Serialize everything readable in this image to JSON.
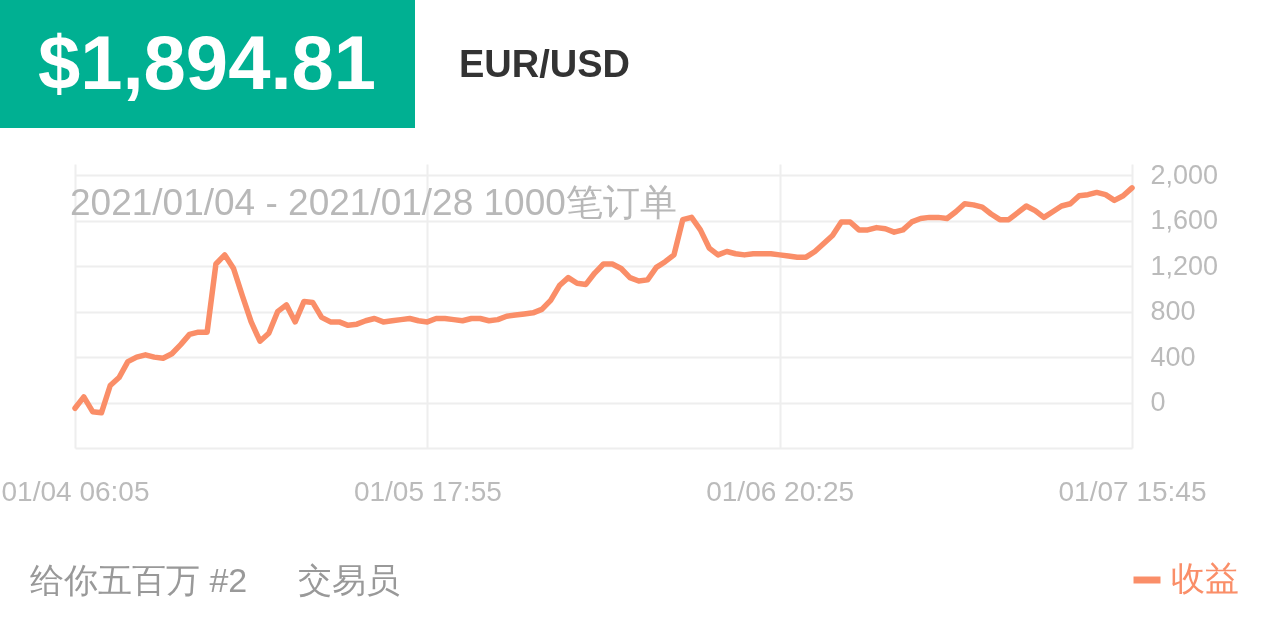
{
  "chart_data": {
    "type": "line",
    "title": "$1,894.81",
    "subtitle": "EUR/USD",
    "annotations": [
      "2021/01/04 - 2021/01/28 1000笔订单",
      "给你五百万 #2",
      "交易员"
    ],
    "categories": [
      "01/04 06:05",
      null,
      null,
      null,
      null,
      null,
      null,
      null,
      null,
      null,
      null,
      null,
      null,
      null,
      null,
      null,
      null,
      null,
      null,
      null,
      null,
      null,
      null,
      null,
      null,
      null,
      null,
      null,
      null,
      null,
      null,
      null,
      null,
      null,
      null,
      null,
      null,
      null,
      null,
      null,
      "01/05 17:55",
      null,
      null,
      null,
      null,
      null,
      null,
      null,
      null,
      null,
      null,
      null,
      null,
      null,
      null,
      null,
      null,
      null,
      null,
      null,
      null,
      null,
      null,
      null,
      null,
      null,
      null,
      null,
      null,
      null,
      null,
      null,
      null,
      null,
      null,
      null,
      null,
      null,
      null,
      null,
      "01/06 20:25",
      null,
      null,
      null,
      null,
      null,
      null,
      null,
      null,
      null,
      null,
      null,
      null,
      null,
      null,
      null,
      null,
      null,
      null,
      null,
      null,
      null,
      null,
      null,
      null,
      null,
      null,
      null,
      null,
      null,
      null,
      null,
      null,
      null,
      null,
      null,
      null,
      null,
      null,
      null,
      "01/07 15:45"
    ],
    "series": [
      {
        "name": "收益",
        "color": "#fa8e68",
        "values": [
          -50,
          50,
          -80,
          -90,
          150,
          220,
          360,
          400,
          420,
          400,
          390,
          430,
          510,
          600,
          620,
          620,
          1220,
          1300,
          1180,
          940,
          710,
          540,
          610,
          800,
          860,
          710,
          890,
          880,
          750,
          710,
          710,
          680,
          690,
          720,
          740,
          710,
          720,
          730,
          740,
          720,
          710,
          740,
          740,
          730,
          720,
          740,
          740,
          720,
          730,
          760,
          770,
          780,
          790,
          820,
          900,
          1030,
          1100,
          1050,
          1040,
          1140,
          1220,
          1220,
          1180,
          1100,
          1070,
          1080,
          1190,
          1240,
          1300,
          1610,
          1630,
          1520,
          1360,
          1300,
          1330,
          1310,
          1300,
          1310,
          1310,
          1310,
          1300,
          1290,
          1280,
          1280,
          1330,
          1400,
          1470,
          1590,
          1590,
          1520,
          1520,
          1540,
          1530,
          1500,
          1520,
          1590,
          1620,
          1630,
          1630,
          1620,
          1680,
          1750,
          1740,
          1720,
          1660,
          1610,
          1610,
          1670,
          1730,
          1690,
          1630,
          1680,
          1730,
          1750,
          1820,
          1830,
          1850,
          1830,
          1780,
          1820,
          1890
        ]
      }
    ],
    "ylim": [
      -400,
      2100
    ],
    "yticks": [
      {
        "value": -400,
        "label": null
      },
      0,
      400,
      800,
      {
        "value": 1200,
        "label": "1,200"
      },
      {
        "value": 1600,
        "label": "1,600"
      },
      {
        "value": 2000,
        "label": "2,000"
      }
    ],
    "grid": true,
    "legend": "bottom right"
  }
}
